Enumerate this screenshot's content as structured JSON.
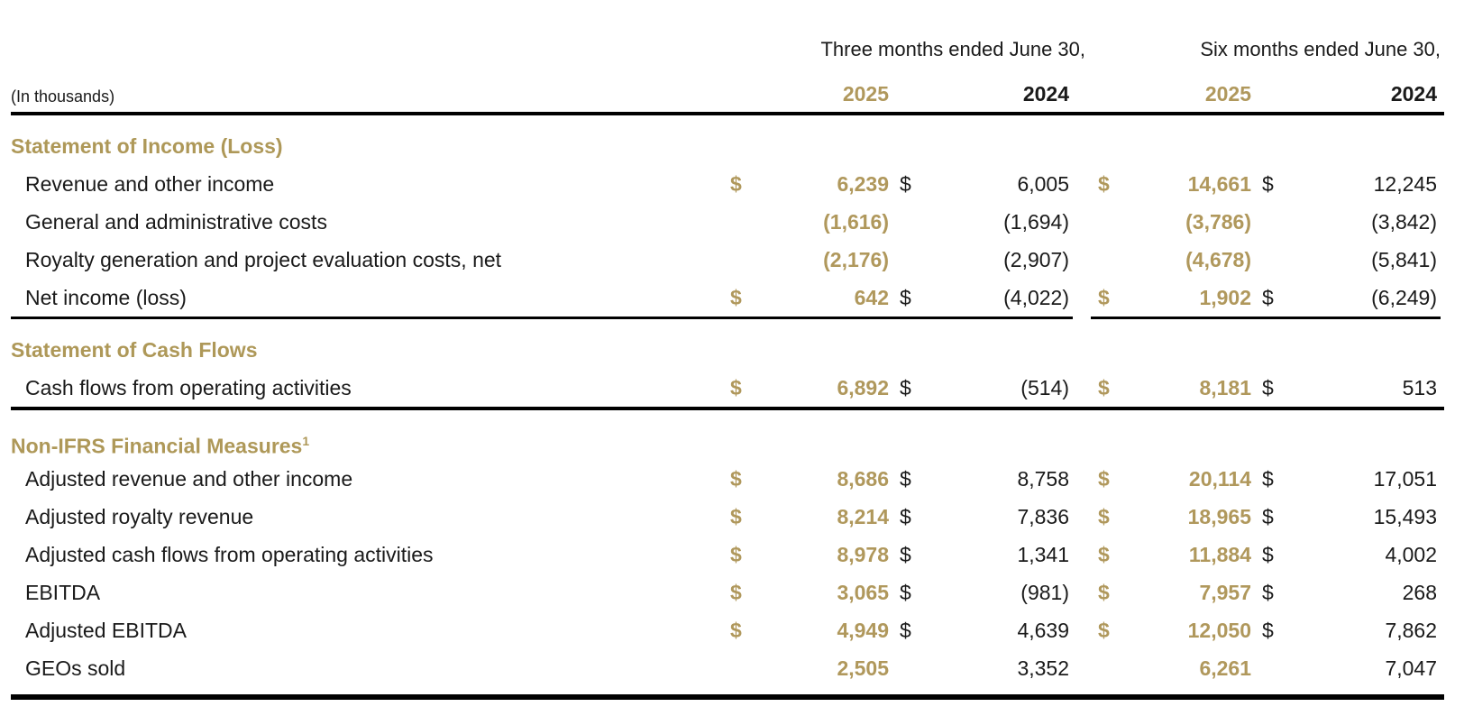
{
  "meta": {
    "units_label": "(In thousands)",
    "currency_symbol": "$",
    "colors": {
      "gold": "#B0985C",
      "text": "#1a1a1a",
      "rule": "#000000"
    }
  },
  "header": {
    "group1": "Three months ended June 30,",
    "group2": "Six months ended June 30,",
    "columns": [
      {
        "label": "2025",
        "tone": "gold"
      },
      {
        "label": "2024",
        "tone": "black"
      },
      {
        "label": "2025",
        "tone": "gold"
      },
      {
        "label": "2024",
        "tone": "black"
      }
    ]
  },
  "sections": [
    {
      "title": "Statement of Income (Loss)",
      "superscript": "",
      "divider_after": "segmented",
      "rows": [
        {
          "label": "Revenue and other income",
          "dollar": [
            true,
            true,
            true,
            true
          ],
          "values": [
            "6,239",
            "6,005",
            "14,661",
            "12,245"
          ]
        },
        {
          "label": "General and administrative costs",
          "dollar": [
            false,
            false,
            false,
            false
          ],
          "values": [
            "(1,616)",
            "(1,694)",
            "(3,786)",
            "(3,842)"
          ]
        },
        {
          "label": "Royalty generation and project evaluation costs, net",
          "dollar": [
            false,
            false,
            false,
            false
          ],
          "values": [
            "(2,176)",
            "(2,907)",
            "(4,678)",
            "(5,841)"
          ]
        },
        {
          "label": "Net income (loss)",
          "dollar": [
            true,
            true,
            true,
            true
          ],
          "values": [
            "642",
            "(4,022)",
            "1,902",
            "(6,249)"
          ]
        }
      ]
    },
    {
      "title": "Statement of Cash Flows",
      "superscript": "",
      "divider_after": "full",
      "rows": [
        {
          "label": "Cash flows from operating activities",
          "dollar": [
            true,
            true,
            true,
            true
          ],
          "values": [
            "6,892",
            "(514)",
            "8,181",
            "513"
          ]
        }
      ]
    },
    {
      "title": "Non-IFRS Financial Measures",
      "superscript": "1",
      "divider_after": "thick",
      "rows": [
        {
          "label": "Adjusted revenue and other income",
          "dollar": [
            true,
            true,
            true,
            true
          ],
          "values": [
            "8,686",
            "8,758",
            "20,114",
            "17,051"
          ]
        },
        {
          "label": "Adjusted royalty revenue",
          "dollar": [
            true,
            true,
            true,
            true
          ],
          "values": [
            "8,214",
            "7,836",
            "18,965",
            "15,493"
          ]
        },
        {
          "label": "Adjusted cash flows from operating activities",
          "dollar": [
            true,
            true,
            true,
            true
          ],
          "values": [
            "8,978",
            "1,341",
            "11,884",
            "4,002"
          ]
        },
        {
          "label": "EBITDA",
          "dollar": [
            true,
            true,
            true,
            true
          ],
          "values": [
            "3,065",
            "(981)",
            "7,957",
            "268"
          ]
        },
        {
          "label": "Adjusted EBITDA",
          "dollar": [
            true,
            true,
            true,
            true
          ],
          "values": [
            "4,949",
            "4,639",
            "12,050",
            "7,862"
          ]
        },
        {
          "label": "GEOs sold",
          "dollar": [
            false,
            false,
            false,
            false
          ],
          "values": [
            "2,505",
            "3,352",
            "6,261",
            "7,047"
          ]
        }
      ]
    }
  ]
}
